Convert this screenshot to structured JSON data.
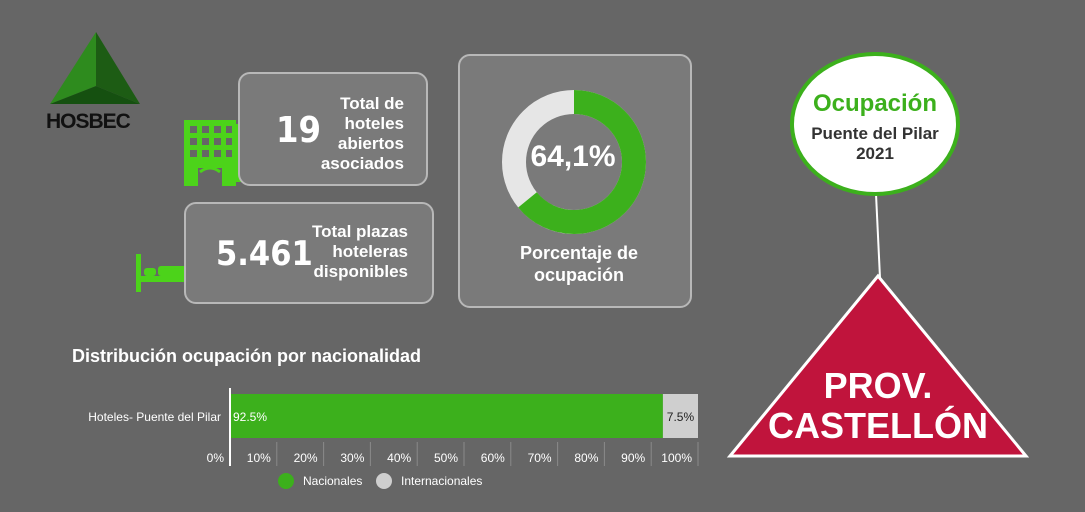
{
  "logo": {
    "text": "HOSBEC"
  },
  "hotels_card": {
    "value": "19",
    "label_lines": [
      "Total de",
      "hoteles",
      "abiertos",
      "asociados"
    ]
  },
  "beds_card": {
    "value": "5.461",
    "label_lines": [
      "Total plazas",
      "hoteleras",
      "disponibles"
    ]
  },
  "occupancy_card": {
    "percent_text": "64,1%",
    "fraction": 0.641,
    "label_lines": [
      "Porcentaje de",
      "ocupación"
    ],
    "colors": {
      "filled": "#3cb01c",
      "empty": "#e6e6e6"
    }
  },
  "badge": {
    "title": "Ocupación",
    "subtitle_lines": [
      "Puente del Pilar",
      "2021"
    ]
  },
  "province": {
    "lines": [
      "PROV.",
      "CASTELLÓN"
    ],
    "color": "#c0143c"
  },
  "chart_data": {
    "type": "bar",
    "orientation": "horizontal-stacked-percent",
    "title": "Distribución ocupación por nacionalidad",
    "categories": [
      "Hoteles- Puente del Pilar"
    ],
    "series": [
      {
        "name": "Nacionales",
        "values": [
          92.5
        ],
        "label": "92.5%",
        "color": "#3cb01c"
      },
      {
        "name": "Internacionales",
        "values": [
          7.5
        ],
        "label": "7.5%",
        "color": "#cfcfcf"
      }
    ],
    "xlim": [
      0,
      100
    ],
    "x_ticks": [
      "0%",
      "10%",
      "20%",
      "30%",
      "40%",
      "50%",
      "60%",
      "70%",
      "80%",
      "90%",
      "100%"
    ],
    "legend_position": "bottom"
  }
}
